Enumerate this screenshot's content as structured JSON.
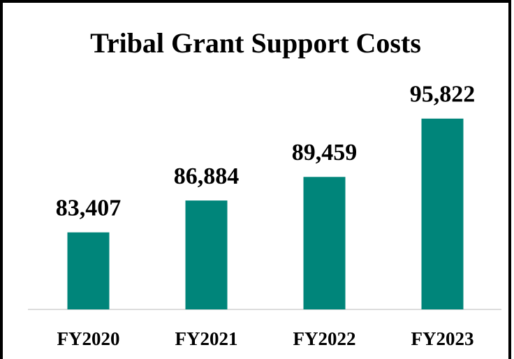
{
  "chart_data": {
    "type": "bar",
    "title": "Tribal Grant Support Costs",
    "categories": [
      "FY2020",
      "FY2021",
      "FY2022",
      "FY2023"
    ],
    "values": [
      83407,
      86884,
      89459,
      95822
    ],
    "value_labels": [
      "83,407",
      "86,884",
      "89,459",
      "95,822"
    ],
    "color": "#00857a",
    "ylim": [
      75000,
      100000
    ]
  }
}
